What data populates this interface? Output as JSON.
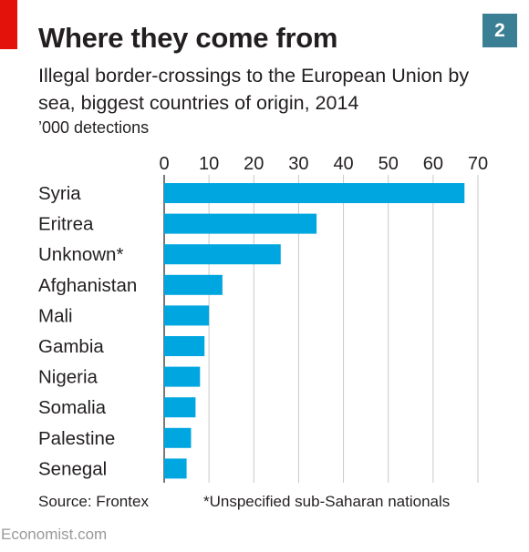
{
  "header": {
    "title": "Where they come from",
    "chart_number": "2",
    "subtitle": "Illegal border-crossings to the European Union by sea, biggest countries of origin, 2014",
    "units": "’000 detections"
  },
  "footer": {
    "source": "Source: Frontex",
    "footnote": "*Unspecified sub-Saharan nationals",
    "brand": "Economist.com"
  },
  "colors": {
    "bar": "#00a6e0",
    "accent_red": "#e3120b",
    "badge": "#3a7f93",
    "gridline": "#c9c9c9"
  },
  "chart_data": {
    "type": "bar",
    "orientation": "horizontal",
    "categories": [
      "Syria",
      "Eritrea",
      "Unknown*",
      "Afghanistan",
      "Mali",
      "Gambia",
      "Nigeria",
      "Somalia",
      "Palestine",
      "Senegal"
    ],
    "values": [
      67,
      34,
      26,
      13,
      10,
      9,
      8,
      7,
      6,
      5
    ],
    "xlim": [
      0,
      70
    ],
    "xticks": [
      0,
      10,
      20,
      30,
      40,
      50,
      60,
      70
    ],
    "xaxis_position": "top",
    "grid": true
  }
}
